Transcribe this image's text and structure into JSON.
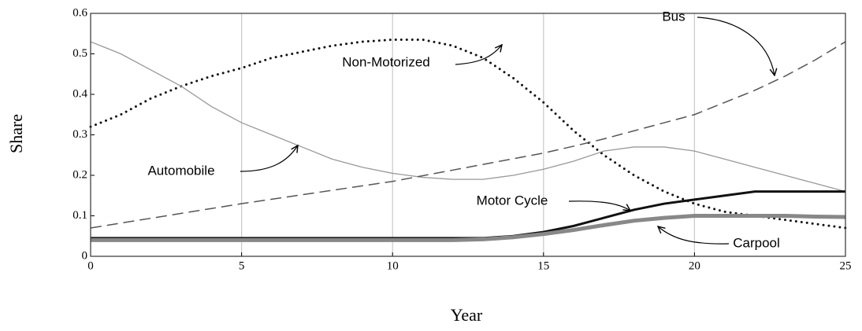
{
  "chart_data": {
    "type": "line",
    "x": [
      0,
      1,
      2,
      3,
      4,
      5,
      6,
      7,
      8,
      9,
      10,
      11,
      12,
      13,
      14,
      15,
      16,
      17,
      18,
      19,
      20,
      21,
      22,
      23,
      24,
      25
    ],
    "series": [
      {
        "name": "Non-Motorized",
        "color": "#111111",
        "style": "dotted",
        "values": [
          0.32,
          0.35,
          0.39,
          0.42,
          0.445,
          0.465,
          0.49,
          0.505,
          0.52,
          0.53,
          0.535,
          0.535,
          0.52,
          0.49,
          0.44,
          0.38,
          0.31,
          0.25,
          0.2,
          0.16,
          0.13,
          0.11,
          0.1,
          0.09,
          0.08,
          0.07
        ]
      },
      {
        "name": "Automobile",
        "color": "#999999",
        "style": "thin",
        "values": [
          0.53,
          0.5,
          0.46,
          0.42,
          0.37,
          0.33,
          0.3,
          0.27,
          0.24,
          0.22,
          0.205,
          0.195,
          0.19,
          0.19,
          0.2,
          0.215,
          0.235,
          0.26,
          0.27,
          0.27,
          0.26,
          0.24,
          0.22,
          0.2,
          0.18,
          0.16
        ]
      },
      {
        "name": "Bus",
        "color": "#555555",
        "style": "dashed",
        "values": [
          0.07,
          0.082,
          0.094,
          0.106,
          0.118,
          0.13,
          0.141,
          0.152,
          0.163,
          0.174,
          0.185,
          0.199,
          0.213,
          0.227,
          0.241,
          0.255,
          0.272,
          0.29,
          0.31,
          0.33,
          0.35,
          0.38,
          0.41,
          0.445,
          0.485,
          0.53
        ]
      },
      {
        "name": "Motor Cycle",
        "color": "#111111",
        "style": "thick",
        "values": [
          0.045,
          0.045,
          0.045,
          0.045,
          0.045,
          0.045,
          0.045,
          0.045,
          0.045,
          0.045,
          0.045,
          0.045,
          0.045,
          0.045,
          0.05,
          0.06,
          0.075,
          0.095,
          0.115,
          0.13,
          0.14,
          0.15,
          0.16,
          0.16,
          0.16,
          0.16
        ]
      },
      {
        "name": "Carpool",
        "color": "#888888",
        "style": "thicker",
        "values": [
          0.04,
          0.04,
          0.04,
          0.04,
          0.04,
          0.04,
          0.04,
          0.04,
          0.04,
          0.04,
          0.04,
          0.04,
          0.04,
          0.042,
          0.047,
          0.055,
          0.065,
          0.077,
          0.088,
          0.095,
          0.1,
          0.1,
          0.1,
          0.1,
          0.098,
          0.097
        ]
      }
    ],
    "xlabel": "Year",
    "ylabel": "Share",
    "xlim": [
      0,
      25
    ],
    "xticks": [
      0,
      5,
      10,
      15,
      20,
      25
    ],
    "ylim": [
      0,
      0.6
    ],
    "yticks": [
      0,
      0.1,
      0.2,
      0.3,
      0.4,
      0.5,
      0.6
    ],
    "grid": "x"
  }
}
